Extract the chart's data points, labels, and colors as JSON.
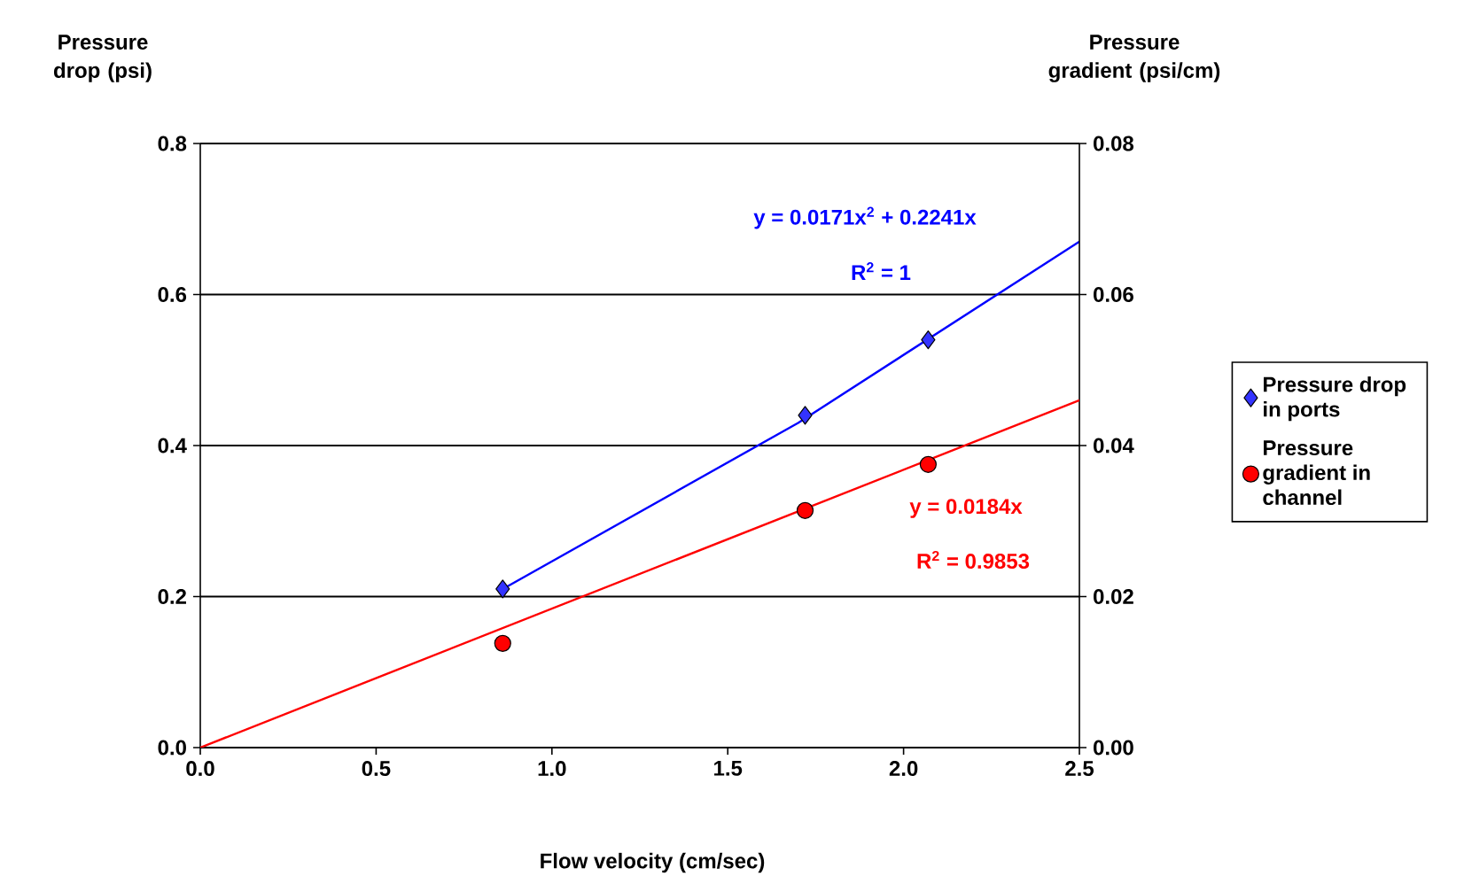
{
  "chart_data": {
    "type": "scatter",
    "xlabel": "Flow velocity (cm/sec)",
    "ylabel": "Pressure drop (psi)",
    "y2label": "Pressure gradient (psi/cm)",
    "xlim": [
      0,
      2.5
    ],
    "xticks": [
      {
        "value": 0,
        "label": "0.0"
      },
      {
        "value": 0.5,
        "label": "0.5"
      },
      {
        "value": 1,
        "label": "1.0"
      },
      {
        "value": 1.5,
        "label": "1.5"
      },
      {
        "value": 2,
        "label": "2.0"
      },
      {
        "value": 2.5,
        "label": "2.5"
      }
    ],
    "ylim": [
      0,
      0.8
    ],
    "yticks": [
      {
        "value": 0,
        "label": "0.0"
      },
      {
        "value": 0.2,
        "label": "0.2"
      },
      {
        "value": 0.4,
        "label": "0.4"
      },
      {
        "value": 0.6,
        "label": "0.6"
      },
      {
        "value": 0.8,
        "label": "0.8"
      }
    ],
    "y2lim": [
      0,
      0.08
    ],
    "y2ticks": [
      {
        "value": 0,
        "label": "0.00"
      },
      {
        "value": 0.02,
        "label": "0.02"
      },
      {
        "value": 0.04,
        "label": "0.04"
      },
      {
        "value": 0.06,
        "label": "0.06"
      },
      {
        "value": 0.08,
        "label": "0.08"
      }
    ],
    "grid": "y",
    "legend": "right",
    "series": [
      {
        "name": "Pressure drop in ports",
        "marker": "diamond",
        "color": "#3333ff",
        "x": [
          0.86,
          1.72,
          2.07
        ],
        "values": [
          0.21,
          0.44,
          0.54
        ]
      },
      {
        "name": "Pressure gradient in channel",
        "marker": "circle",
        "color": "#ff0000",
        "axis": "y2",
        "x": [
          0.86,
          1.72,
          2.07
        ],
        "values": [
          0.0138,
          0.0314,
          0.0375
        ]
      },
      {
        "type": "line",
        "marker": "none",
        "color": "#0000ff",
        "x": [
          0.86,
          1.7,
          2.5
        ],
        "values": [
          0.21,
          0.43,
          0.67
        ]
      },
      {
        "type": "line",
        "marker": "none",
        "color": "#ff0000",
        "axis": "y2",
        "x": [
          0,
          2.5
        ],
        "values": [
          0,
          0.046
        ]
      }
    ],
    "annotations": [
      "y = 0.0171x$^{2}$ + 0.2241x",
      "R$^{2}$ = 1",
      "y = 0.0184x",
      "R$^{2}$ = 0.9853"
    ]
  }
}
